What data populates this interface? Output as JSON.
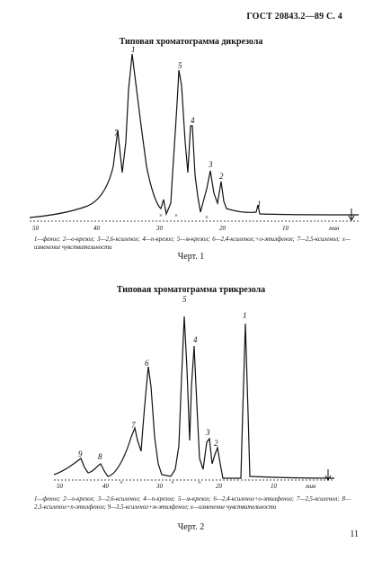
{
  "header": "ГОСТ 20843.2—89 С. 4",
  "figure1": {
    "title": "Типовая хроматограмма дикрезола",
    "axis_ticks": [
      "50",
      "40",
      "30",
      "20",
      "10"
    ],
    "axis_unit": "мин",
    "peak_labels": [
      "7",
      "1",
      "5",
      "4",
      "3",
      "2",
      "1"
    ],
    "caption": "1—фенол; 2—о-крезол; 3—2,6-ксиленол; 4—п-крезол; 5—м-крезол; 6—2,4-ксиленол;+о-этилфенол; 7—2,5-ксиленол; x—изменение чувствительности",
    "label": "Черт. 1"
  },
  "figure2": {
    "title": "Типовая хроматограмма трикрезола",
    "axis_ticks": [
      "50",
      "40",
      "30",
      "20",
      "10"
    ],
    "axis_unit": "мин",
    "peak_labels": [
      "9",
      "8",
      "7",
      "6",
      "5",
      "4",
      "3",
      "2",
      "1"
    ],
    "caption": "1—фенол; 2—о-крезол; 3—2,6-ксиленол; 4—п-крезол; 5—м-крезол; 6—2,4-ксиленол+о-этилфенол; 7—2,5-ксиленол; 8—2,3-ксиленол+п-этилфенол; 9—3,5-ксиленол+м-этилфенол; x—изменение чувствительности",
    "label": "Черт. 2"
  },
  "page_number": "11"
}
